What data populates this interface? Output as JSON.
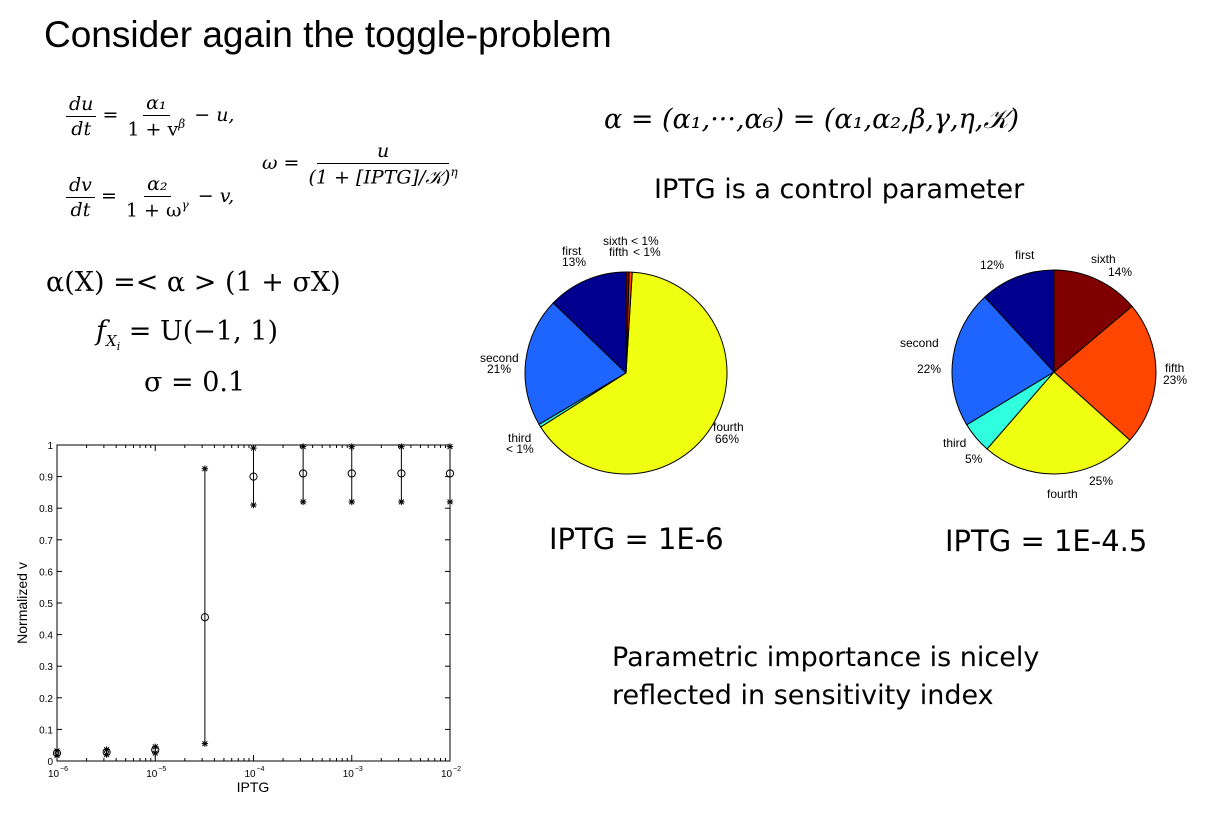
{
  "slide": {
    "title": "Consider again the toggle-problem",
    "alpha_def": "α = (α₁,···,α₆) = (α₁,α₂,β,γ,η,𝒦)",
    "control_note": "IPTG is a control parameter",
    "alpha_x_line": "α(X) =< α > (1 + σX)",
    "f_line": "U(−1, 1)",
    "sigma_line": "σ = 0.1",
    "conclusion_line1": "Parametric importance is nicely",
    "conclusion_line2": "reflected in sensitivity index",
    "equations": {
      "du_num": "du",
      "du_den": "dt",
      "alpha1": "α₁",
      "den1": "1 + v",
      "tail1": "− u,",
      "dv_num": "dv",
      "dv_den": "dt",
      "alpha2": "α₂",
      "den2": "1 + ω",
      "tail2": "− v,",
      "omega_lhs": "ω =",
      "omega_num": "u",
      "omega_den": "(1 + [IPTG]/𝒦)"
    }
  },
  "chart_data": [
    {
      "type": "pie",
      "caption": "IPTG = 1E-6",
      "slices": [
        {
          "name": "first",
          "value": 13,
          "label": "13%",
          "color": "#00008f"
        },
        {
          "name": "second",
          "value": 21,
          "label": "21%",
          "color": "#1e64ff"
        },
        {
          "name": "third",
          "value": 0.5,
          "label": "< 1%",
          "color": "#30ffdf"
        },
        {
          "name": "fourth",
          "value": 66,
          "label": "66%",
          "color": "#f0ff10"
        },
        {
          "name": "fifth",
          "value": 0.5,
          "label": "< 1%",
          "color": "#ff4600"
        },
        {
          "name": "sixth",
          "value": 0.5,
          "label": "< 1%",
          "color": "#800000"
        }
      ]
    },
    {
      "type": "pie",
      "caption": "IPTG = 1E-4.5",
      "slices": [
        {
          "name": "first",
          "value": 12,
          "label": "12%",
          "color": "#00008f"
        },
        {
          "name": "second",
          "value": 22,
          "label": "22%",
          "color": "#1e64ff"
        },
        {
          "name": "third",
          "value": 5,
          "label": "5%",
          "color": "#30ffdf"
        },
        {
          "name": "fourth",
          "value": 25,
          "label": "25%",
          "color": "#f0ff10"
        },
        {
          "name": "fifth",
          "value": 23,
          "label": "23%",
          "color": "#ff4600"
        },
        {
          "name": "sixth",
          "value": 14,
          "label": "14%",
          "color": "#800000"
        }
      ]
    },
    {
      "type": "scatter",
      "xlabel": "IPTG",
      "ylabel": "Normalized v",
      "xscale": "log",
      "xlim": [
        1e-06,
        0.01
      ],
      "ylim": [
        0,
        1
      ],
      "xticks": [
        1e-06,
        1e-05,
        0.0001,
        0.001,
        0.01
      ],
      "xtick_exponents": [
        "−6",
        "−5",
        "−4",
        "−3",
        "−2"
      ],
      "yticks": [
        0,
        0.1,
        0.2,
        0.3,
        0.4,
        0.5,
        0.6,
        0.7,
        0.8,
        0.9,
        1
      ],
      "ytick_labels": [
        "0",
        "0.1",
        "0.2",
        "0.3",
        "0.4",
        "0.5",
        "0.6",
        "0.7",
        "0.8",
        "0.9",
        "1"
      ],
      "points": [
        {
          "x": 1e-06,
          "mean": 0.025,
          "low": 0.018,
          "high": 0.032
        },
        {
          "x": 3.2e-06,
          "mean": 0.028,
          "low": 0.02,
          "high": 0.036
        },
        {
          "x": 1e-05,
          "mean": 0.035,
          "low": 0.025,
          "high": 0.045
        },
        {
          "x": 3.2e-05,
          "mean": 0.455,
          "low": 0.055,
          "high": 0.925
        },
        {
          "x": 0.0001,
          "mean": 0.9,
          "low": 0.81,
          "high": 0.99
        },
        {
          "x": 0.00032,
          "mean": 0.91,
          "low": 0.82,
          "high": 0.995
        },
        {
          "x": 0.001,
          "mean": 0.91,
          "low": 0.82,
          "high": 0.995
        },
        {
          "x": 0.0032,
          "mean": 0.91,
          "low": 0.82,
          "high": 0.995
        },
        {
          "x": 0.01,
          "mean": 0.91,
          "low": 0.82,
          "high": 0.995
        }
      ]
    }
  ]
}
